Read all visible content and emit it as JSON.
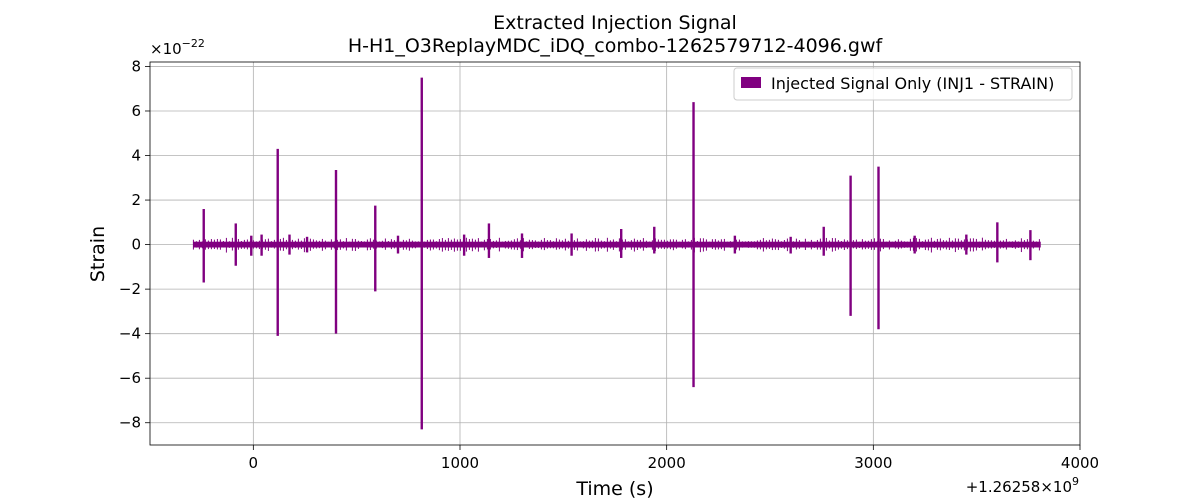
{
  "chart_data": {
    "type": "line",
    "title": "Extracted Injection Signal",
    "subtitle": "H-H1_O3ReplayMDC_iDQ_combo-1262579712-4096.gwf",
    "xlabel": "Time (s)",
    "ylabel": "Strain",
    "x_offset_label": "+1.26258×10",
    "x_offset_exp": "9",
    "y_multiplier_label": "×10",
    "y_multiplier_exp": "−22",
    "xlim": [
      -500,
      4000
    ],
    "ylim": [
      -9,
      8.2
    ],
    "xticks": [
      0,
      1000,
      2000,
      3000,
      4000
    ],
    "xtick_labels": [
      "0",
      "1000",
      "2000",
      "3000",
      "4000"
    ],
    "yticks": [
      -8,
      -6,
      -4,
      -2,
      0,
      2,
      4,
      6,
      8
    ],
    "ytick_labels": [
      "−8",
      "−6",
      "−4",
      "−2",
      "0",
      "2",
      "4",
      "6",
      "8"
    ],
    "grid": true,
    "legend_position": "top-right",
    "series": [
      {
        "name": "Injected Signal Only (INJ1 - STRAIN)",
        "color": "#800080",
        "baseline_band": {
          "x_start": -290,
          "x_end": 3810,
          "amplitude": 0.13
        },
        "spikes": [
          {
            "x": -240,
            "max": 1.6,
            "min": -1.7
          },
          {
            "x": -85,
            "max": 0.95,
            "min": -0.95
          },
          {
            "x": -10,
            "max": 0.4,
            "min": -0.5
          },
          {
            "x": 40,
            "max": 0.45,
            "min": -0.5
          },
          {
            "x": 118,
            "max": 4.3,
            "min": -4.1
          },
          {
            "x": 175,
            "max": 0.45,
            "min": -0.45
          },
          {
            "x": 260,
            "max": 0.35,
            "min": -0.35
          },
          {
            "x": 400,
            "max": 3.35,
            "min": -4.0
          },
          {
            "x": 590,
            "max": 1.75,
            "min": -2.1
          },
          {
            "x": 700,
            "max": 0.4,
            "min": -0.4
          },
          {
            "x": 815,
            "max": 7.5,
            "min": -8.3
          },
          {
            "x": 1020,
            "max": 0.45,
            "min": -0.5
          },
          {
            "x": 1140,
            "max": 0.95,
            "min": -0.6
          },
          {
            "x": 1300,
            "max": 0.5,
            "min": -0.6
          },
          {
            "x": 1540,
            "max": 0.5,
            "min": -0.5
          },
          {
            "x": 1780,
            "max": 0.7,
            "min": -0.6
          },
          {
            "x": 1940,
            "max": 0.8,
            "min": -0.4
          },
          {
            "x": 2130,
            "max": 6.4,
            "min": -6.4
          },
          {
            "x": 2330,
            "max": 0.4,
            "min": -0.4
          },
          {
            "x": 2600,
            "max": 0.35,
            "min": -0.4
          },
          {
            "x": 2760,
            "max": 0.8,
            "min": -0.5
          },
          {
            "x": 2890,
            "max": 3.1,
            "min": -3.2
          },
          {
            "x": 3025,
            "max": 3.5,
            "min": -3.8
          },
          {
            "x": 3200,
            "max": 0.4,
            "min": -0.4
          },
          {
            "x": 3450,
            "max": 0.45,
            "min": -0.45
          },
          {
            "x": 3600,
            "max": 1.0,
            "min": -0.8
          },
          {
            "x": 3760,
            "max": 0.65,
            "min": -0.7
          }
        ]
      }
    ]
  }
}
